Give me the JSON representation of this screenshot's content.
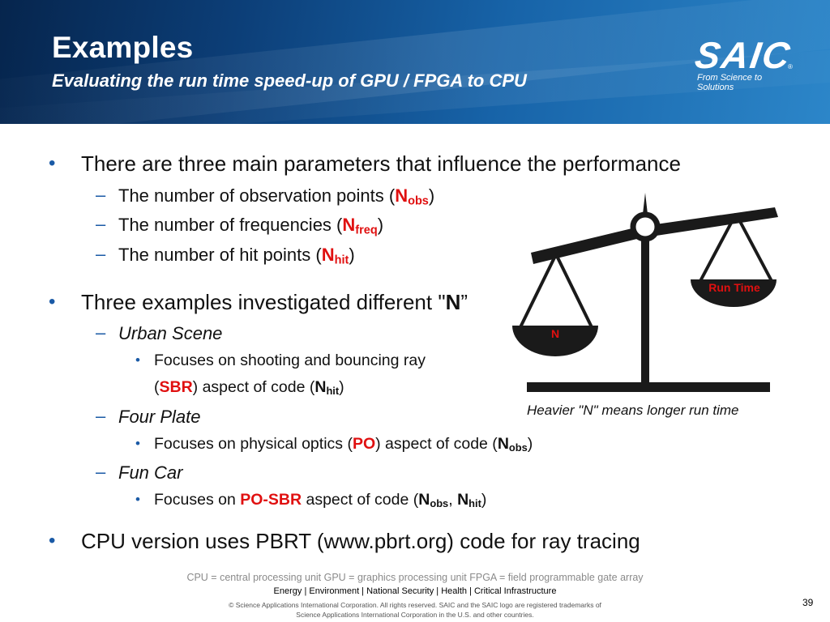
{
  "header": {
    "title": "Examples",
    "subtitle": "Evaluating the run time speed-up of GPU / FPGA to CPU",
    "logo_text": "SAIC",
    "logo_reg": "®",
    "logo_tagline": "From Science to Solutions"
  },
  "body": {
    "bullet1": {
      "text": "There are three main parameters that influence the performance"
    },
    "bullet1_subs": [
      {
        "text": "The number of observation points (",
        "sym": "N",
        "sub": "obs",
        "close": ")"
      },
      {
        "text": "The number of frequencies (",
        "sym": "N",
        "sub": "freq",
        "close": ")"
      },
      {
        "text": "The number of hit points (",
        "sym": "N",
        "sub": "hit",
        "close": ")"
      }
    ],
    "bullet2": {
      "text": "Three examples investigated different \"",
      "sym": "N",
      "close": "”"
    },
    "urban": {
      "label": "Urban Scene",
      "line1": "Focuses on shooting and bouncing ray",
      "line2_open": "(",
      "line2_red": "SBR",
      "line2_mid": ") aspect of code (",
      "sym": "N",
      "sub": "hit",
      "close": ")"
    },
    "four_plate": {
      "label": "Four Plate",
      "text_pre": "Focuses on physical optics (",
      "red": "PO",
      "text_mid": ") aspect of code (",
      "sym": "N",
      "sub": "obs",
      "close": ")"
    },
    "fun_car": {
      "label": "Fun Car",
      "text_pre": "Focuses on ",
      "red": "PO-SBR",
      "text_mid": " aspect of code (",
      "sym1": "N",
      "sub1": "obs",
      "sep": ", ",
      "sym2": "N",
      "sub2": "hit",
      "close": ")"
    },
    "bullet3": {
      "text": "CPU version uses PBRT (www.pbrt.org) code for ray tracing"
    },
    "markers": {
      "level1": "•",
      "level2": "–",
      "level3": "•"
    }
  },
  "figure": {
    "left_pan_label": "N",
    "right_pan_label": "Run Time",
    "caption": "Heavier \"N\" means longer run time",
    "label_color": "#e01010",
    "scale_color": "#1a1a1a"
  },
  "footer": {
    "footnote": "CPU = central processing unit  GPU = graphics processing unit  FPGA = field programmable gate array",
    "sectors": "Energy | Environment | National Security | Health | Critical Infrastructure",
    "copyright_line1": "© Science Applications International Corporation. All rights reserved. SAIC and the SAIC logo are registered trademarks of",
    "copyright_line2": "Science Applications International Corporation in the U.S. and other countries.",
    "page_number": "39"
  }
}
